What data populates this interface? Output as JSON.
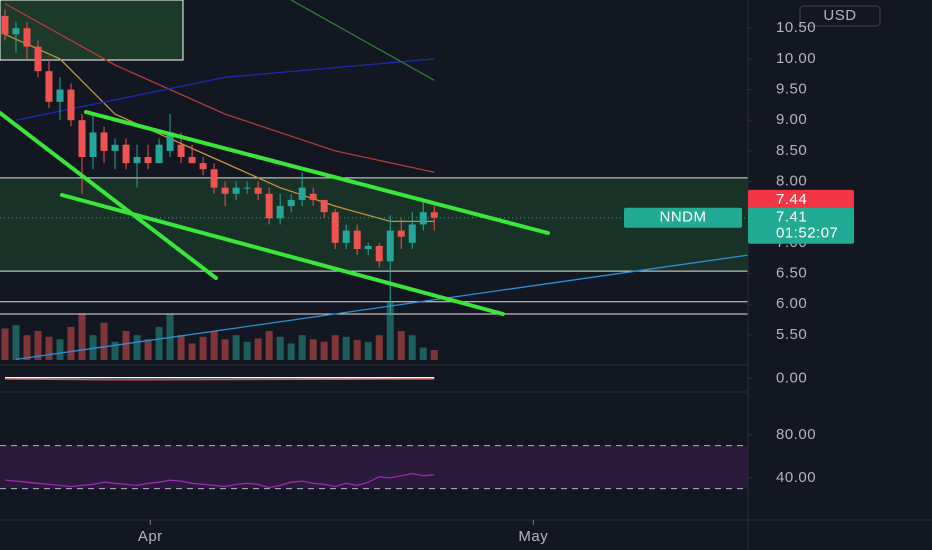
{
  "currency": "USD",
  "chart_data": [
    {
      "type": "candlestick",
      "ticker": "NNDM",
      "open": [
        10.7,
        10.4,
        10.5,
        10.2,
        9.8,
        9.3,
        9.5,
        9.0,
        8.4,
        8.8,
        8.5,
        8.6,
        8.3,
        8.4,
        8.3,
        8.5,
        8.6,
        8.4,
        8.3,
        8.2,
        7.9,
        7.8,
        7.9,
        7.9,
        7.8,
        7.4,
        7.6,
        7.7,
        7.8,
        7.7,
        7.5,
        7.0,
        7.2,
        6.9,
        6.95,
        6.7,
        7.2,
        7.0,
        7.3,
        7.5
      ],
      "high": [
        10.8,
        10.6,
        10.6,
        10.3,
        10.0,
        9.7,
        9.6,
        9.1,
        9.1,
        8.9,
        8.7,
        8.7,
        8.6,
        8.6,
        8.7,
        9.1,
        8.8,
        8.6,
        8.4,
        8.3,
        8.0,
        8.0,
        8.0,
        8.0,
        7.9,
        7.8,
        7.8,
        8.15,
        7.9,
        7.7,
        7.55,
        7.3,
        7.3,
        7.0,
        7.0,
        7.45,
        7.4,
        7.5,
        7.7,
        7.6
      ],
      "low": [
        10.3,
        10.1,
        10.0,
        9.7,
        9.2,
        9.0,
        8.9,
        7.8,
        8.2,
        8.3,
        8.2,
        8.2,
        7.9,
        8.2,
        8.3,
        8.4,
        8.3,
        8.3,
        8.1,
        7.8,
        7.6,
        7.7,
        7.8,
        7.7,
        7.3,
        7.3,
        7.5,
        7.6,
        7.6,
        7.4,
        6.9,
        6.9,
        6.8,
        6.8,
        6.6,
        5.85,
        6.9,
        6.9,
        7.2,
        7.2
      ],
      "close": [
        10.4,
        10.5,
        10.2,
        9.8,
        9.3,
        9.5,
        9.0,
        8.4,
        8.8,
        8.5,
        8.6,
        8.3,
        8.4,
        8.3,
        8.6,
        8.8,
        8.4,
        8.3,
        8.2,
        7.9,
        7.8,
        7.9,
        7.9,
        7.8,
        7.4,
        7.6,
        7.7,
        7.9,
        7.7,
        7.5,
        7.0,
        7.2,
        6.9,
        6.95,
        6.7,
        7.2,
        7.1,
        7.3,
        7.5,
        7.41
      ],
      "volume": [
        38,
        42,
        30,
        35,
        28,
        25,
        40,
        55,
        30,
        45,
        22,
        35,
        30,
        25,
        40,
        55,
        30,
        20,
        28,
        35,
        25,
        30,
        22,
        26,
        35,
        28,
        20,
        30,
        25,
        22,
        30,
        28,
        24,
        22,
        30,
        70,
        35,
        30,
        15,
        12
      ],
      "up_color": "#26a69a",
      "down_color": "#ef5350",
      "xlim": [
        -0.45,
        67.5
      ],
      "xticks": [
        {
          "value": 13.2,
          "label": "Apr"
        },
        {
          "value": 48,
          "label": "May"
        }
      ],
      "ylim": [
        5.09,
        10.96
      ],
      "yticks": [
        {
          "value": 5.5,
          "label": "5.50"
        },
        {
          "value": 6,
          "label": "6.00"
        },
        {
          "value": 6.5,
          "label": "6.50"
        },
        {
          "value": 7,
          "label": "7.00"
        },
        {
          "value": 7.5,
          "label": "7.50"
        },
        {
          "value": 8,
          "label": "8.00"
        },
        {
          "value": 8.5,
          "label": "8.50"
        },
        {
          "value": 9,
          "label": "9.00"
        },
        {
          "value": 9.5,
          "label": "9.50"
        },
        {
          "value": 10,
          "label": "10.00"
        },
        {
          "value": 10.5,
          "label": "10.50"
        }
      ],
      "series": [
        {
          "color": "#b23a3a",
          "x": [
            0,
            10,
            20,
            30,
            39
          ],
          "values": [
            10.9,
            9.9,
            9.1,
            8.5,
            8.15
          ]
        },
        {
          "color": "#c8923a",
          "x": [
            0,
            5,
            10,
            15,
            20,
            25,
            30,
            35,
            39
          ],
          "values": [
            10.4,
            10.0,
            9.1,
            8.7,
            8.3,
            7.9,
            7.6,
            7.35,
            7.35
          ]
        },
        {
          "color": "#1e2ab0",
          "x": [
            1,
            20,
            39
          ],
          "values": [
            9.0,
            9.7,
            10.0
          ]
        },
        {
          "color": "#2e7d32",
          "x": [
            26,
            39
          ],
          "values": [
            10.96,
            9.65
          ]
        },
        {
          "color": "#2f8fd6",
          "x": [
            1,
            67.5
          ],
          "values": [
            5.1,
            6.8
          ]
        }
      ],
      "levels": [
        8.06,
        6.54,
        6.04,
        5.84
      ],
      "price_labels": [
        {
          "value": 7.44,
          "color": "#f23645"
        },
        {
          "value": 7.41,
          "color": "#22ab94"
        }
      ],
      "countdown": "01:52:07"
    },
    {
      "type": "line",
      "ylim": [
        -0.5,
        0.5
      ],
      "yticks": [
        {
          "value": 0,
          "label": "0.00"
        }
      ],
      "series": [
        {
          "color": "#ffffff",
          "x": [
            0,
            10,
            20,
            30,
            39
          ],
          "values": [
            0.03,
            0.03,
            0.03,
            0.03,
            0.03
          ]
        },
        {
          "color": "#ef5350",
          "x": [
            0,
            10,
            20,
            30,
            39
          ],
          "values": [
            -0.02,
            -0.05,
            -0.04,
            -0.03,
            -0.02
          ]
        }
      ]
    },
    {
      "type": "rsi",
      "ylim": [
        0.9,
        117
      ],
      "yticks": [
        {
          "value": 80,
          "label": "80.00"
        },
        {
          "value": 40,
          "label": "40.00"
        }
      ],
      "band": [
        30,
        70
      ],
      "color": "#9c27b0",
      "values": [
        38,
        37,
        36,
        35,
        34,
        33,
        32,
        33,
        34,
        36,
        35,
        34,
        33,
        35,
        36,
        38,
        37,
        35,
        34,
        33,
        32,
        34,
        35,
        34,
        31,
        33,
        36,
        37,
        35,
        34,
        32,
        35,
        33,
        36,
        41,
        40,
        42,
        44,
        42,
        43
      ]
    }
  ]
}
